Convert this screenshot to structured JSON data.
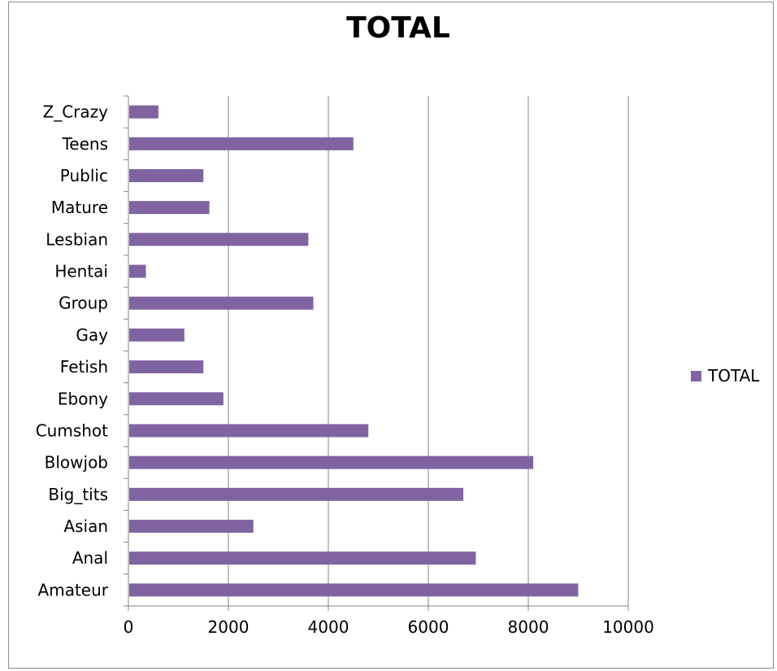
{
  "chart_data": {
    "type": "bar",
    "orientation": "horizontal",
    "title": "TOTAL",
    "categories": [
      "Amateur",
      "Anal",
      "Asian",
      "Big_tits",
      "Blowjob",
      "Cumshot",
      "Ebony",
      "Fetish",
      "Gay",
      "Group",
      "Hentai",
      "Lesbian",
      "Mature",
      "Public",
      "Teens",
      "Z_Crazy"
    ],
    "series": [
      {
        "name": "TOTAL",
        "color": "#8064a2",
        "values": [
          9000,
          6950,
          2500,
          6700,
          8100,
          4800,
          1900,
          1500,
          1120,
          3700,
          350,
          3600,
          1620,
          1500,
          4500,
          600
        ]
      }
    ],
    "xlim": [
      0,
      10000
    ],
    "xticks": [
      "0",
      "2000",
      "4000",
      "6000",
      "8000",
      "10000"
    ],
    "grid": "vertical",
    "legend_position": "right"
  }
}
